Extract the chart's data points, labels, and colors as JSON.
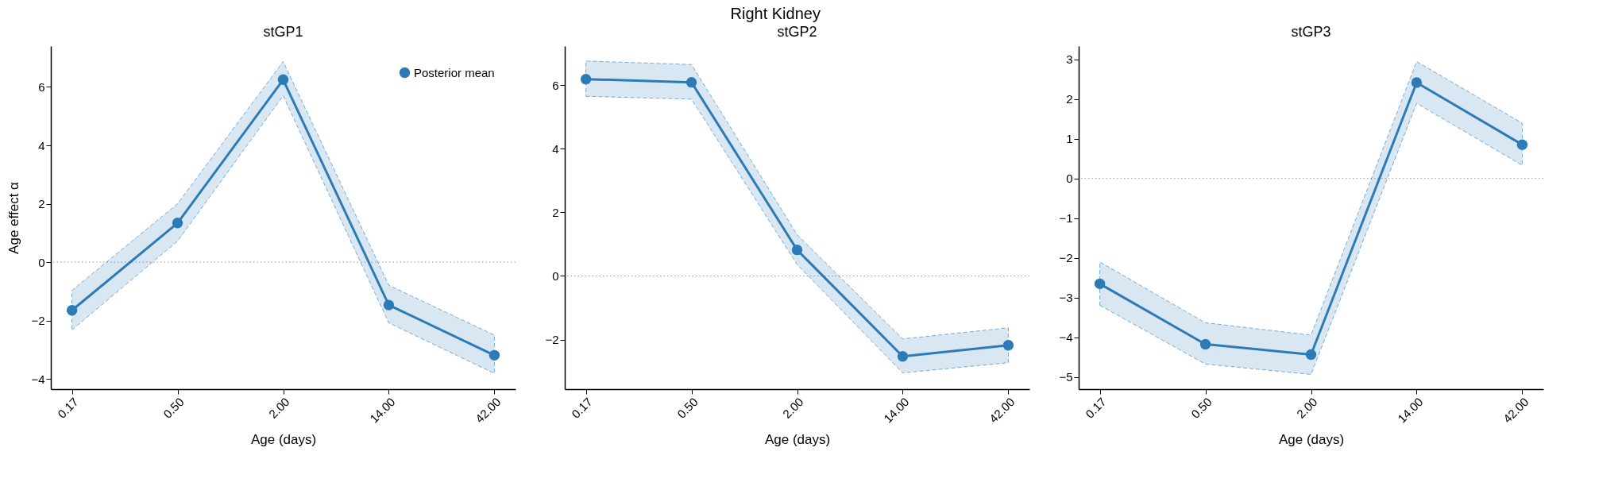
{
  "chart_data": [
    {
      "type": "line",
      "title": "stGP1",
      "annotations": [
        "Right Kidney"
      ],
      "xlabel": "Age (days)",
      "ylabel": "Age effect α",
      "categories": [
        "0.17",
        "0.50",
        "2.00",
        "14.00",
        "42.00"
      ],
      "series": [
        {
          "name": "Posterior mean",
          "color": "#2c7bb6",
          "values": [
            -1.65,
            1.34,
            6.25,
            -1.47,
            -3.19
          ],
          "lower": [
            -2.32,
            0.72,
            5.7,
            -2.08,
            -3.81
          ],
          "upper": [
            -0.97,
            2.0,
            6.87,
            -0.79,
            -2.5
          ]
        }
      ],
      "ylim": [
        -4.35,
        7.4
      ],
      "yticks": [
        -4,
        -2,
        0,
        2,
        4,
        6
      ],
      "ref_lines": [
        {
          "axis": "y",
          "value": 0,
          "color": "#999999",
          "line_style": "dotted"
        }
      ],
      "marker": "circle",
      "line_style": "solid",
      "legend": "top right"
    },
    {
      "type": "line",
      "title": "stGP2",
      "xlabel": "Age (days)",
      "categories": [
        "0.17",
        "0.50",
        "2.00",
        "14.00",
        "42.00"
      ],
      "series": [
        {
          "color": "#2c7bb6",
          "values": [
            6.19,
            6.09,
            0.82,
            -2.53,
            -2.18
          ],
          "lower": [
            5.65,
            5.56,
            0.36,
            -3.05,
            -2.73
          ],
          "upper": [
            6.76,
            6.65,
            1.3,
            -1.98,
            -1.63
          ]
        }
      ],
      "ylim": [
        -3.56,
        7.23
      ],
      "yticks": [
        -2,
        0,
        2,
        4,
        6
      ],
      "ref_lines": [
        {
          "axis": "y",
          "value": 0,
          "color": "#999999",
          "line_style": "dotted"
        }
      ],
      "marker": "circle",
      "line_style": "solid"
    },
    {
      "type": "line",
      "title": "stGP3",
      "xlabel": "Age (days)",
      "categories": [
        "0.17",
        "0.50",
        "2.00",
        "14.00",
        "42.00"
      ],
      "series": [
        {
          "color": "#2c7bb6",
          "values": [
            -2.65,
            -4.17,
            -4.43,
            2.41,
            0.85
          ],
          "lower": [
            -3.19,
            -4.67,
            -4.93,
            1.89,
            0.33
          ],
          "upper": [
            -2.1,
            -3.63,
            -3.94,
            2.94,
            1.39
          ]
        }
      ],
      "ylim": [
        -5.3,
        3.33
      ],
      "yticks": [
        -5,
        -4,
        -3,
        -2,
        -1,
        0,
        1,
        2,
        3
      ],
      "ref_lines": [
        {
          "axis": "y",
          "value": 0,
          "color": "#999999",
          "line_style": "dotted"
        }
      ],
      "marker": "circle",
      "line_style": "solid"
    }
  ]
}
